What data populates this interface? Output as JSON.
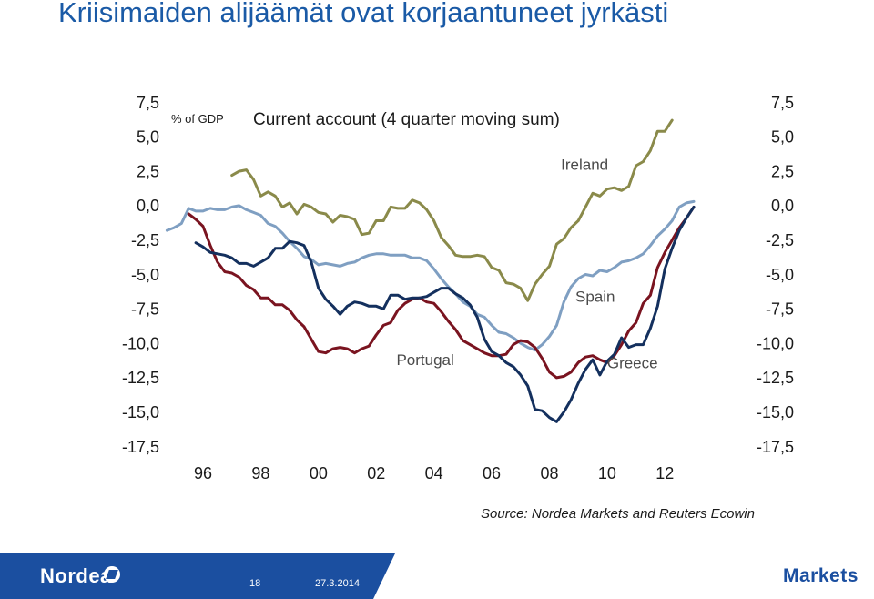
{
  "slide": {
    "title": "Kriisimaiden alijäämät ovat korjaantuneet jyrkästi",
    "source": "Source: Nordea Markets and Reuters Ecowin"
  },
  "footer": {
    "logo_text": "Nordea",
    "page_number": "18",
    "date": "27.3.2014",
    "brand": "Markets"
  },
  "colors": {
    "title": "#1a5aa6",
    "footer_band": "#1b4fa0",
    "ireland": "#8a8a4a",
    "spain": "#7f9fc2",
    "portugal": "#7a1420",
    "greece": "#14305e"
  },
  "chart_data": {
    "type": "line",
    "title": "Current account (4 quarter moving sum)",
    "unit_label": "% of GDP",
    "ylim": [
      -17.5,
      7.5
    ],
    "y_ticks": [
      "7,5",
      "5,0",
      "2,5",
      "0,0",
      "-2,5",
      "-5,0",
      "-7,5",
      "-10,0",
      "-12,5",
      "-15,0",
      "-17,5"
    ],
    "y_tick_values": [
      7.5,
      5,
      2.5,
      0,
      -2.5,
      -5,
      -7.5,
      -10,
      -12.5,
      -15,
      -17.5
    ],
    "xlim": [
      1994.8,
      2014.2
    ],
    "x_ticks": [
      "96",
      "98",
      "00",
      "02",
      "04",
      "06",
      "08",
      "10",
      "12"
    ],
    "x_tick_values": [
      1996,
      1998,
      2000,
      2002,
      2004,
      2006,
      2008,
      2010,
      2012
    ],
    "grid": false,
    "legend": "inline labels",
    "series": [
      {
        "name": "Ireland",
        "color_key": "ireland",
        "points": [
          [
            1997.0,
            2.3
          ],
          [
            1997.25,
            2.6
          ],
          [
            1997.5,
            2.7
          ],
          [
            1997.75,
            2.0
          ],
          [
            1998.0,
            0.8
          ],
          [
            1998.25,
            1.1
          ],
          [
            1998.5,
            0.8
          ],
          [
            1998.75,
            0.0
          ],
          [
            1999.0,
            0.3
          ],
          [
            1999.25,
            -0.5
          ],
          [
            1999.5,
            0.2
          ],
          [
            1999.75,
            0.0
          ],
          [
            2000.0,
            -0.4
          ],
          [
            2000.25,
            -0.5
          ],
          [
            2000.5,
            -1.1
          ],
          [
            2000.75,
            -0.6
          ],
          [
            2001.0,
            -0.7
          ],
          [
            2001.25,
            -0.9
          ],
          [
            2001.5,
            -2.0
          ],
          [
            2001.75,
            -1.9
          ],
          [
            2002.0,
            -1.0
          ],
          [
            2002.25,
            -1.0
          ],
          [
            2002.5,
            0.0
          ],
          [
            2002.75,
            -0.1
          ],
          [
            2003.0,
            -0.1
          ],
          [
            2003.25,
            0.5
          ],
          [
            2003.5,
            0.3
          ],
          [
            2003.75,
            -0.2
          ],
          [
            2004.0,
            -1.0
          ],
          [
            2004.25,
            -2.2
          ],
          [
            2004.5,
            -2.8
          ],
          [
            2004.75,
            -3.5
          ],
          [
            2005.0,
            -3.6
          ],
          [
            2005.25,
            -3.6
          ],
          [
            2005.5,
            -3.5
          ],
          [
            2005.75,
            -3.6
          ],
          [
            2006.0,
            -4.4
          ],
          [
            2006.25,
            -4.6
          ],
          [
            2006.5,
            -5.5
          ],
          [
            2006.75,
            -5.6
          ],
          [
            2007.0,
            -5.9
          ],
          [
            2007.25,
            -6.8
          ],
          [
            2007.5,
            -5.6
          ],
          [
            2007.75,
            -4.9
          ],
          [
            2008.0,
            -4.3
          ],
          [
            2008.25,
            -2.7
          ],
          [
            2008.5,
            -2.3
          ],
          [
            2008.75,
            -1.5
          ],
          [
            2009.0,
            -1.0
          ],
          [
            2009.25,
            0.0
          ],
          [
            2009.5,
            1.0
          ],
          [
            2009.75,
            0.8
          ],
          [
            2010.0,
            1.3
          ],
          [
            2010.25,
            1.4
          ],
          [
            2010.5,
            1.2
          ],
          [
            2010.75,
            1.5
          ],
          [
            2011.0,
            3.0
          ],
          [
            2011.25,
            3.3
          ],
          [
            2011.5,
            4.1
          ],
          [
            2011.75,
            5.5
          ],
          [
            2012.0,
            5.5
          ],
          [
            2012.25,
            6.3
          ]
        ]
      },
      {
        "name": "Spain",
        "color_key": "spain",
        "points": [
          [
            1994.75,
            -1.7
          ],
          [
            1995.0,
            -1.5
          ],
          [
            1995.25,
            -1.2
          ],
          [
            1995.5,
            -0.1
          ],
          [
            1995.75,
            -0.3
          ],
          [
            1996.0,
            -0.3
          ],
          [
            1996.25,
            -0.1
          ],
          [
            1996.5,
            -0.2
          ],
          [
            1996.75,
            -0.2
          ],
          [
            1997.0,
            0.0
          ],
          [
            1997.25,
            0.1
          ],
          [
            1997.5,
            -0.2
          ],
          [
            1997.75,
            -0.4
          ],
          [
            1998.0,
            -0.6
          ],
          [
            1998.25,
            -1.2
          ],
          [
            1998.5,
            -1.4
          ],
          [
            1998.75,
            -1.9
          ],
          [
            1999.0,
            -2.5
          ],
          [
            1999.25,
            -3.0
          ],
          [
            1999.5,
            -3.6
          ],
          [
            1999.75,
            -3.8
          ],
          [
            2000.0,
            -4.2
          ],
          [
            2000.25,
            -4.1
          ],
          [
            2000.5,
            -4.2
          ],
          [
            2000.75,
            -4.3
          ],
          [
            2001.0,
            -4.1
          ],
          [
            2001.25,
            -4.0
          ],
          [
            2001.5,
            -3.7
          ],
          [
            2001.75,
            -3.5
          ],
          [
            2002.0,
            -3.4
          ],
          [
            2002.25,
            -3.4
          ],
          [
            2002.5,
            -3.5
          ],
          [
            2002.75,
            -3.5
          ],
          [
            2003.0,
            -3.5
          ],
          [
            2003.25,
            -3.7
          ],
          [
            2003.5,
            -3.7
          ],
          [
            2003.75,
            -3.9
          ],
          [
            2004.0,
            -4.5
          ],
          [
            2004.25,
            -5.2
          ],
          [
            2004.5,
            -5.8
          ],
          [
            2004.75,
            -6.3
          ],
          [
            2005.0,
            -6.9
          ],
          [
            2005.25,
            -7.2
          ],
          [
            2005.5,
            -7.8
          ],
          [
            2005.75,
            -8.0
          ],
          [
            2006.0,
            -8.6
          ],
          [
            2006.25,
            -9.1
          ],
          [
            2006.5,
            -9.2
          ],
          [
            2006.75,
            -9.5
          ],
          [
            2007.0,
            -9.9
          ],
          [
            2007.25,
            -10.2
          ],
          [
            2007.5,
            -10.4
          ],
          [
            2007.75,
            -10.0
          ],
          [
            2008.0,
            -9.4
          ],
          [
            2008.25,
            -8.6
          ],
          [
            2008.5,
            -6.9
          ],
          [
            2008.75,
            -5.8
          ],
          [
            2009.0,
            -5.2
          ],
          [
            2009.25,
            -4.9
          ],
          [
            2009.5,
            -5.0
          ],
          [
            2009.75,
            -4.6
          ],
          [
            2010.0,
            -4.7
          ],
          [
            2010.25,
            -4.4
          ],
          [
            2010.5,
            -4.0
          ],
          [
            2010.75,
            -3.9
          ],
          [
            2011.0,
            -3.7
          ],
          [
            2011.25,
            -3.4
          ],
          [
            2011.5,
            -2.8
          ],
          [
            2011.75,
            -2.1
          ],
          [
            2012.0,
            -1.6
          ],
          [
            2012.25,
            -1.0
          ],
          [
            2012.5,
            0.0
          ],
          [
            2012.75,
            0.3
          ],
          [
            2013.0,
            0.4
          ]
        ]
      },
      {
        "name": "Portugal",
        "color_key": "portugal",
        "points": [
          [
            1995.5,
            -0.5
          ],
          [
            1995.75,
            -0.9
          ],
          [
            1996.0,
            -1.4
          ],
          [
            1996.25,
            -2.8
          ],
          [
            1996.5,
            -4.0
          ],
          [
            1996.75,
            -4.7
          ],
          [
            1997.0,
            -4.8
          ],
          [
            1997.25,
            -5.1
          ],
          [
            1997.5,
            -5.7
          ],
          [
            1997.75,
            -6.0
          ],
          [
            1998.0,
            -6.6
          ],
          [
            1998.25,
            -6.6
          ],
          [
            1998.5,
            -7.1
          ],
          [
            1998.75,
            -7.1
          ],
          [
            1999.0,
            -7.5
          ],
          [
            1999.25,
            -8.2
          ],
          [
            1999.5,
            -8.7
          ],
          [
            1999.75,
            -9.6
          ],
          [
            2000.0,
            -10.5
          ],
          [
            2000.25,
            -10.6
          ],
          [
            2000.5,
            -10.3
          ],
          [
            2000.75,
            -10.2
          ],
          [
            2001.0,
            -10.3
          ],
          [
            2001.25,
            -10.6
          ],
          [
            2001.5,
            -10.3
          ],
          [
            2001.75,
            -10.1
          ],
          [
            2002.0,
            -9.3
          ],
          [
            2002.25,
            -8.6
          ],
          [
            2002.5,
            -8.4
          ],
          [
            2002.75,
            -7.5
          ],
          [
            2003.0,
            -7.0
          ],
          [
            2003.25,
            -6.7
          ],
          [
            2003.5,
            -6.6
          ],
          [
            2003.75,
            -6.9
          ],
          [
            2004.0,
            -7.0
          ],
          [
            2004.25,
            -7.6
          ],
          [
            2004.5,
            -8.3
          ],
          [
            2004.75,
            -8.9
          ],
          [
            2005.0,
            -9.7
          ],
          [
            2005.25,
            -10.0
          ],
          [
            2005.5,
            -10.3
          ],
          [
            2005.75,
            -10.6
          ],
          [
            2006.0,
            -10.8
          ],
          [
            2006.25,
            -10.8
          ],
          [
            2006.5,
            -10.7
          ],
          [
            2006.75,
            -10.0
          ],
          [
            2007.0,
            -9.7
          ],
          [
            2007.25,
            -9.8
          ],
          [
            2007.5,
            -10.2
          ],
          [
            2007.75,
            -11.0
          ],
          [
            2008.0,
            -12.0
          ],
          [
            2008.25,
            -12.4
          ],
          [
            2008.5,
            -12.3
          ],
          [
            2008.75,
            -12.0
          ],
          [
            2009.0,
            -11.3
          ],
          [
            2009.25,
            -10.9
          ],
          [
            2009.5,
            -10.8
          ],
          [
            2009.75,
            -11.1
          ],
          [
            2010.0,
            -11.3
          ],
          [
            2010.25,
            -10.8
          ],
          [
            2010.5,
            -10.0
          ],
          [
            2010.75,
            -9.0
          ],
          [
            2011.0,
            -8.4
          ],
          [
            2011.25,
            -7.0
          ],
          [
            2011.5,
            -6.4
          ],
          [
            2011.75,
            -4.4
          ],
          [
            2012.0,
            -3.3
          ],
          [
            2012.25,
            -2.4
          ],
          [
            2012.5,
            -1.5
          ],
          [
            2012.75,
            -0.8
          ],
          [
            2013.0,
            0.0
          ]
        ]
      },
      {
        "name": "Greece",
        "color_key": "greece",
        "points": [
          [
            1995.75,
            -2.6
          ],
          [
            1996.0,
            -2.9
          ],
          [
            1996.25,
            -3.3
          ],
          [
            1996.5,
            -3.4
          ],
          [
            1996.75,
            -3.5
          ],
          [
            1997.0,
            -3.7
          ],
          [
            1997.25,
            -4.1
          ],
          [
            1997.5,
            -4.1
          ],
          [
            1997.75,
            -4.3
          ],
          [
            1998.0,
            -4.0
          ],
          [
            1998.25,
            -3.7
          ],
          [
            1998.5,
            -3.0
          ],
          [
            1998.75,
            -3.0
          ],
          [
            1999.0,
            -2.5
          ],
          [
            1999.25,
            -2.6
          ],
          [
            1999.5,
            -2.8
          ],
          [
            1999.75,
            -4.0
          ],
          [
            2000.0,
            -5.9
          ],
          [
            2000.25,
            -6.7
          ],
          [
            2000.5,
            -7.2
          ],
          [
            2000.75,
            -7.8
          ],
          [
            2001.0,
            -7.2
          ],
          [
            2001.25,
            -6.9
          ],
          [
            2001.5,
            -7.0
          ],
          [
            2001.75,
            -7.2
          ],
          [
            2002.0,
            -7.2
          ],
          [
            2002.25,
            -7.4
          ],
          [
            2002.5,
            -6.4
          ],
          [
            2002.75,
            -6.4
          ],
          [
            2003.0,
            -6.7
          ],
          [
            2003.25,
            -6.6
          ],
          [
            2003.5,
            -6.6
          ],
          [
            2003.75,
            -6.5
          ],
          [
            2004.0,
            -6.2
          ],
          [
            2004.25,
            -5.9
          ],
          [
            2004.5,
            -5.9
          ],
          [
            2004.75,
            -6.3
          ],
          [
            2005.0,
            -6.6
          ],
          [
            2005.25,
            -7.1
          ],
          [
            2005.5,
            -8.0
          ],
          [
            2005.75,
            -9.6
          ],
          [
            2006.0,
            -10.5
          ],
          [
            2006.25,
            -10.8
          ],
          [
            2006.5,
            -11.3
          ],
          [
            2006.75,
            -11.6
          ],
          [
            2007.0,
            -12.2
          ],
          [
            2007.25,
            -13.0
          ],
          [
            2007.5,
            -14.7
          ],
          [
            2007.75,
            -14.8
          ],
          [
            2008.0,
            -15.3
          ],
          [
            2008.25,
            -15.6
          ],
          [
            2008.5,
            -14.9
          ],
          [
            2008.75,
            -14.0
          ],
          [
            2009.0,
            -12.8
          ],
          [
            2009.25,
            -11.8
          ],
          [
            2009.5,
            -11.1
          ],
          [
            2009.75,
            -12.2
          ],
          [
            2010.0,
            -11.2
          ],
          [
            2010.25,
            -10.7
          ],
          [
            2010.5,
            -9.5
          ],
          [
            2010.75,
            -10.2
          ],
          [
            2011.0,
            -10.0
          ],
          [
            2011.25,
            -10.0
          ],
          [
            2011.5,
            -8.8
          ],
          [
            2011.75,
            -7.2
          ],
          [
            2012.0,
            -4.5
          ],
          [
            2012.25,
            -3.0
          ],
          [
            2012.5,
            -1.7
          ],
          [
            2012.75,
            -0.8
          ],
          [
            2013.0,
            0.0
          ]
        ]
      }
    ],
    "inline_labels": [
      {
        "series": "Ireland",
        "text": "Ireland",
        "x": 2008.4,
        "y": 3.0
      },
      {
        "series": "Spain",
        "text": "Spain",
        "x": 2008.9,
        "y": -6.6
      },
      {
        "series": "Portugal",
        "text": "Portugal",
        "x": 2002.7,
        "y": -11.2
      },
      {
        "series": "Greece",
        "text": "Greece",
        "x": 2010.0,
        "y": -11.4
      }
    ]
  }
}
